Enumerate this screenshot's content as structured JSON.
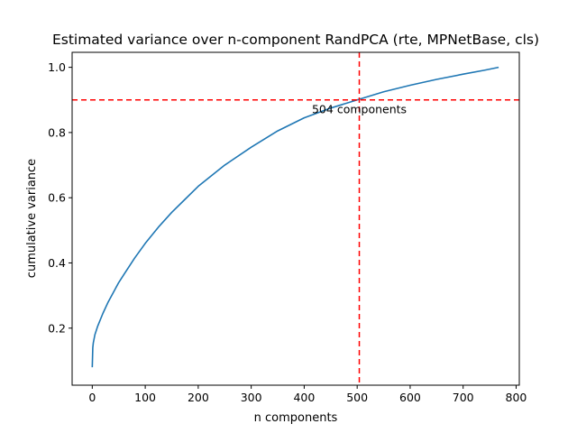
{
  "chart_data": {
    "type": "line",
    "title": "Estimated variance over n-component RandPCA (rte, MPNetBase, cls)",
    "xlabel": "n components",
    "ylabel": "cumulative variance",
    "xlim": [
      -38,
      806
    ],
    "ylim": [
      0.025,
      1.046
    ],
    "xticks": [
      0,
      100,
      200,
      300,
      400,
      500,
      600,
      700,
      800
    ],
    "yticks": [
      0.2,
      0.4,
      0.6,
      0.8,
      1.0
    ],
    "ytick_labels": [
      "0.2",
      "0.4",
      "0.6",
      "0.8",
      "1.0"
    ],
    "grid": false,
    "series": [
      {
        "color": "#1f77b4",
        "x": [
          0,
          1,
          2,
          5,
          10,
          20,
          30,
          40,
          50,
          60,
          80,
          100,
          125,
          150,
          175,
          200,
          250,
          300,
          350,
          400,
          450,
          500,
          550,
          600,
          650,
          700,
          740,
          767
        ],
        "y": [
          0.08,
          0.14,
          0.155,
          0.18,
          0.205,
          0.245,
          0.28,
          0.31,
          0.34,
          0.365,
          0.415,
          0.46,
          0.51,
          0.555,
          0.595,
          0.635,
          0.7,
          0.755,
          0.805,
          0.845,
          0.875,
          0.9,
          0.925,
          0.945,
          0.963,
          0.979,
          0.991,
          1.0
        ]
      }
    ],
    "reference_lines": [
      {
        "orientation": "horizontal",
        "value": 0.9,
        "color": "#ff0000",
        "style": "dashed"
      },
      {
        "orientation": "vertical",
        "value": 504,
        "color": "#ff0000",
        "style": "dashed"
      }
    ],
    "annotation": {
      "text": "504 components",
      "x": 504,
      "y": 0.87
    }
  }
}
